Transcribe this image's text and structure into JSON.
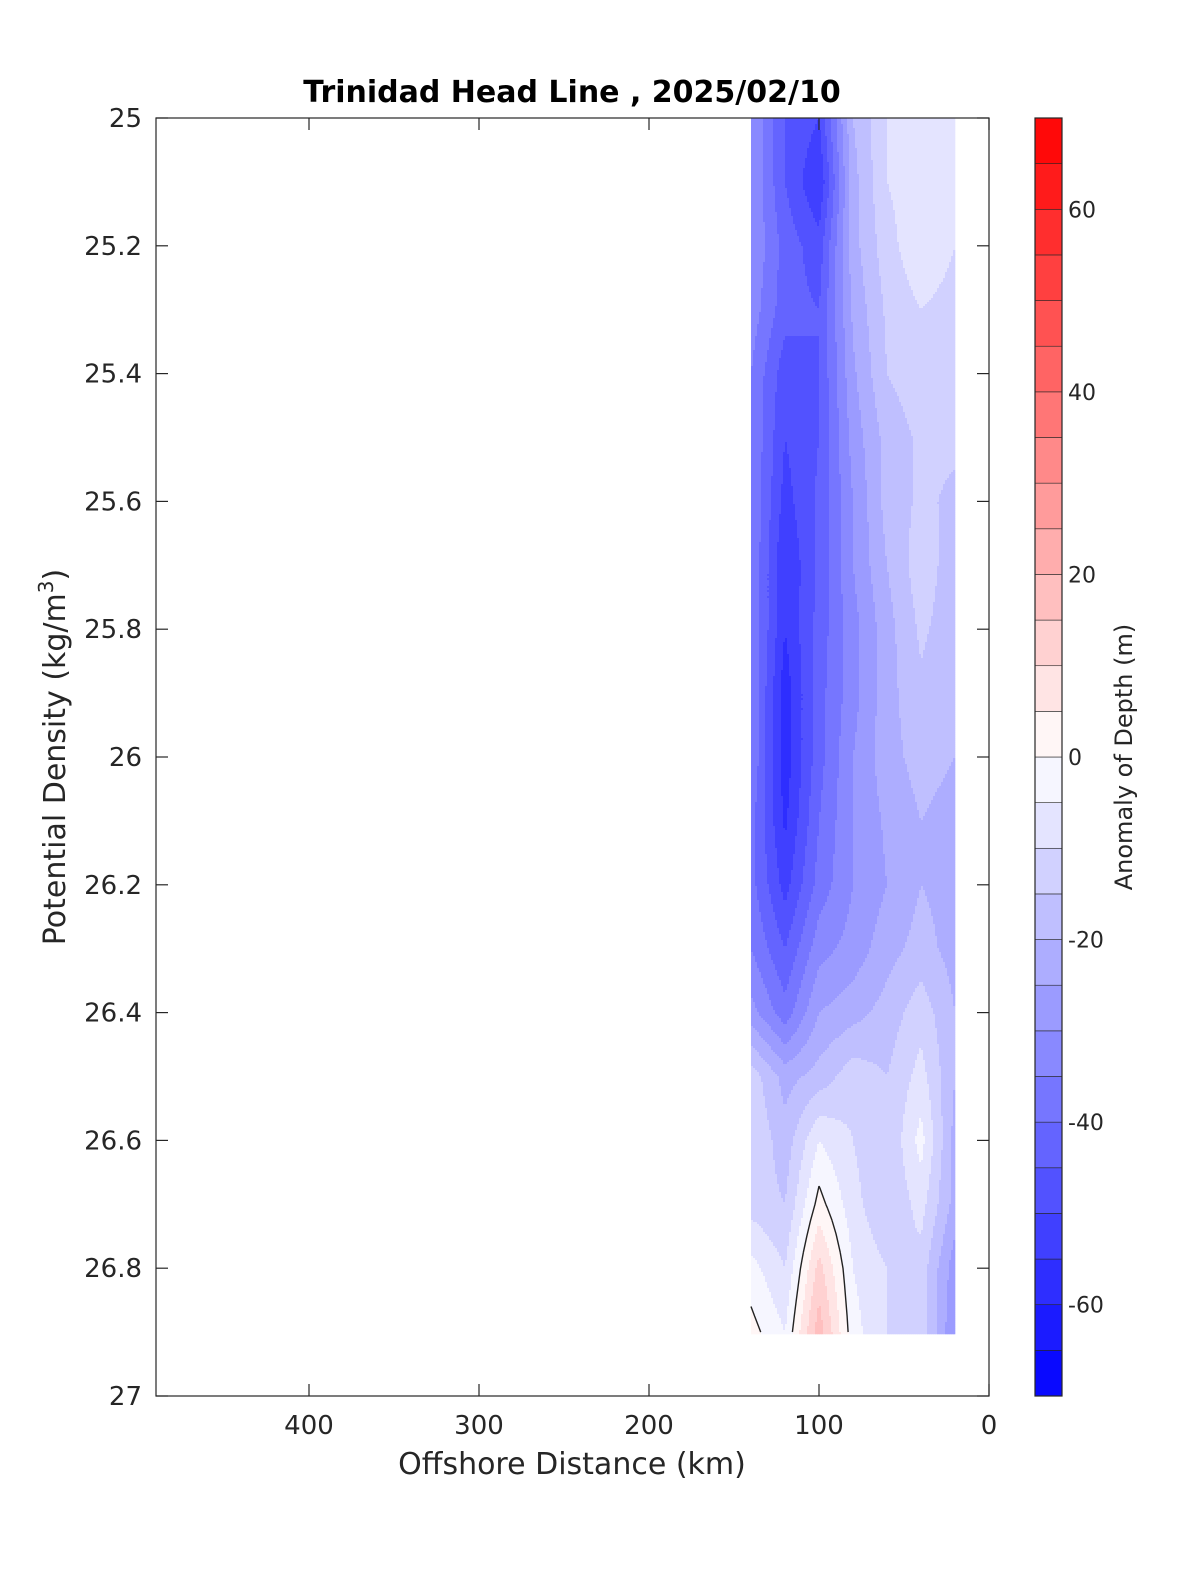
{
  "chart_data": {
    "type": "heatmap",
    "title": "Trinidad Head Line , 2025/02/10",
    "xlabel": "Offshore Distance (km)",
    "ylabel_main": "Potential Density (kg/m",
    "ylabel_sup": "3",
    "ylabel_close": ")",
    "colorbar_label": "Anomaly of Depth (m)",
    "xlim": [
      490,
      0
    ],
    "ylim": [
      25,
      27
    ],
    "x_reversed": true,
    "y_reversed": true,
    "x_ticks": [
      {
        "value": 400,
        "label": "400"
      },
      {
        "value": 300,
        "label": "300"
      },
      {
        "value": 200,
        "label": "200"
      },
      {
        "value": 100,
        "label": "100"
      },
      {
        "value": 0,
        "label": "0"
      }
    ],
    "y_ticks": [
      {
        "value": 25,
        "label": "25"
      },
      {
        "value": 25.2,
        "label": "25.2"
      },
      {
        "value": 25.4,
        "label": "25.4"
      },
      {
        "value": 25.6,
        "label": "25.6"
      },
      {
        "value": 25.8,
        "label": "25.8"
      },
      {
        "value": 26,
        "label": "26"
      },
      {
        "value": 26.2,
        "label": "26.2"
      },
      {
        "value": 26.4,
        "label": "26.4"
      },
      {
        "value": 26.6,
        "label": "26.6"
      },
      {
        "value": 26.8,
        "label": "26.8"
      },
      {
        "value": 27,
        "label": "27"
      }
    ],
    "colorbar": {
      "range": [
        -70,
        70
      ],
      "level_step": 5,
      "min_color": "#0000ff",
      "max_color": "#ff0000",
      "mid_color": "#ffffff",
      "ticks": [
        {
          "value": 60,
          "label": "60"
        },
        {
          "value": 40,
          "label": "40"
        },
        {
          "value": 20,
          "label": "20"
        },
        {
          "value": 0,
          "label": "0"
        },
        {
          "value": -20,
          "label": "-20"
        },
        {
          "value": -40,
          "label": "-40"
        },
        {
          "value": -60,
          "label": "-60"
        }
      ]
    },
    "data_domain": {
      "x": [
        140,
        20
      ],
      "y": [
        25,
        26.9
      ]
    },
    "grid": {
      "x": [
        140,
        120,
        100,
        80,
        60,
        40,
        20
      ],
      "y": [
        25.0,
        25.1,
        25.2,
        25.3,
        25.4,
        25.5,
        25.6,
        25.7,
        25.8,
        25.9,
        26.0,
        26.1,
        26.2,
        26.3,
        26.4,
        26.5,
        26.6,
        26.7,
        26.8,
        26.9
      ],
      "z": [
        [
          -30,
          -45,
          -50,
          -20,
          -10,
          -8,
          -7
        ],
        [
          -30,
          -45,
          -55,
          -22,
          -10,
          -7,
          -7
        ],
        [
          -30,
          -42,
          -48,
          -22,
          -12,
          -6,
          -10
        ],
        [
          -32,
          -43,
          -45,
          -24,
          -14,
          -10,
          -12
        ],
        [
          -35,
          -48,
          -45,
          -26,
          -15,
          -12,
          -12
        ],
        [
          -35,
          -50,
          -45,
          -28,
          -18,
          -14,
          -14
        ],
        [
          -35,
          -52,
          -44,
          -30,
          -18,
          -14,
          -16
        ],
        [
          -35,
          -55,
          -44,
          -30,
          -20,
          -12,
          -18
        ],
        [
          -35,
          -55,
          -43,
          -32,
          -22,
          -14,
          -18
        ],
        [
          -35,
          -58,
          -42,
          -32,
          -22,
          -16,
          -20
        ],
        [
          -35,
          -58,
          -42,
          -30,
          -22,
          -18,
          -20
        ],
        [
          -38,
          -56,
          -40,
          -30,
          -24,
          -20,
          -22
        ],
        [
          -38,
          -52,
          -38,
          -30,
          -25,
          -20,
          -22
        ],
        [
          -35,
          -45,
          -32,
          -28,
          -22,
          -18,
          -22
        ],
        [
          -28,
          -38,
          -25,
          -22,
          -18,
          -12,
          -20
        ],
        [
          -12,
          -22,
          -18,
          -12,
          -15,
          -8,
          -20
        ],
        [
          -10,
          -18,
          -5,
          -10,
          -15,
          -3,
          -22
        ],
        [
          -12,
          -15,
          2,
          -8,
          -15,
          -8,
          -22
        ],
        [
          -3,
          -10,
          12,
          -5,
          -10,
          -12,
          -28
        ],
        [
          2,
          -5,
          18,
          -3,
          -10,
          -12,
          -30
        ]
      ]
    }
  }
}
